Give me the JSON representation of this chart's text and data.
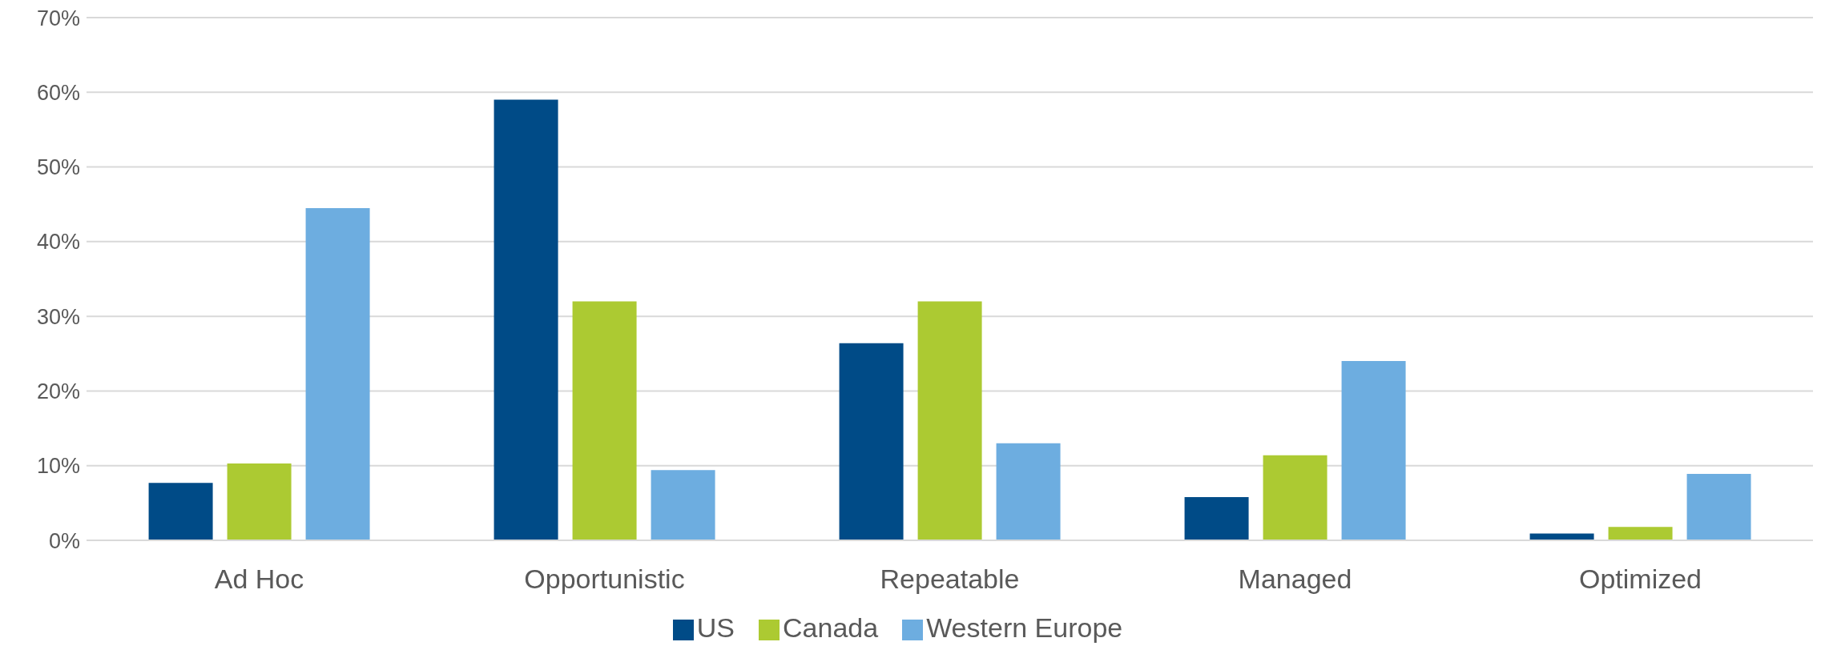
{
  "chart_data": {
    "type": "bar",
    "categories": [
      "Ad Hoc",
      "Opportunistic",
      "Repeatable",
      "Managed",
      "Optimized"
    ],
    "series": [
      {
        "name": "US",
        "color": "#004b87",
        "values": [
          7.7,
          59,
          26.4,
          5.8,
          0.9
        ]
      },
      {
        "name": "Canada",
        "color": "#acca32",
        "values": [
          10.3,
          32,
          32,
          11.4,
          1.8
        ]
      },
      {
        "name": "Western Europe",
        "color": "#6dade0",
        "values": [
          44.5,
          9.4,
          13,
          24,
          8.9
        ]
      }
    ],
    "ylim": [
      0,
      70
    ],
    "yticks": [
      {
        "value": 0,
        "label": "0%"
      },
      {
        "value": 10,
        "label": "10%"
      },
      {
        "value": 20,
        "label": "20%"
      },
      {
        "value": 30,
        "label": "30%"
      },
      {
        "value": 40,
        "label": "40%"
      },
      {
        "value": 50,
        "label": "50%"
      },
      {
        "value": 60,
        "label": "60%"
      },
      {
        "value": 70,
        "label": "70%"
      }
    ],
    "grid": "y",
    "legend": "bottom"
  }
}
